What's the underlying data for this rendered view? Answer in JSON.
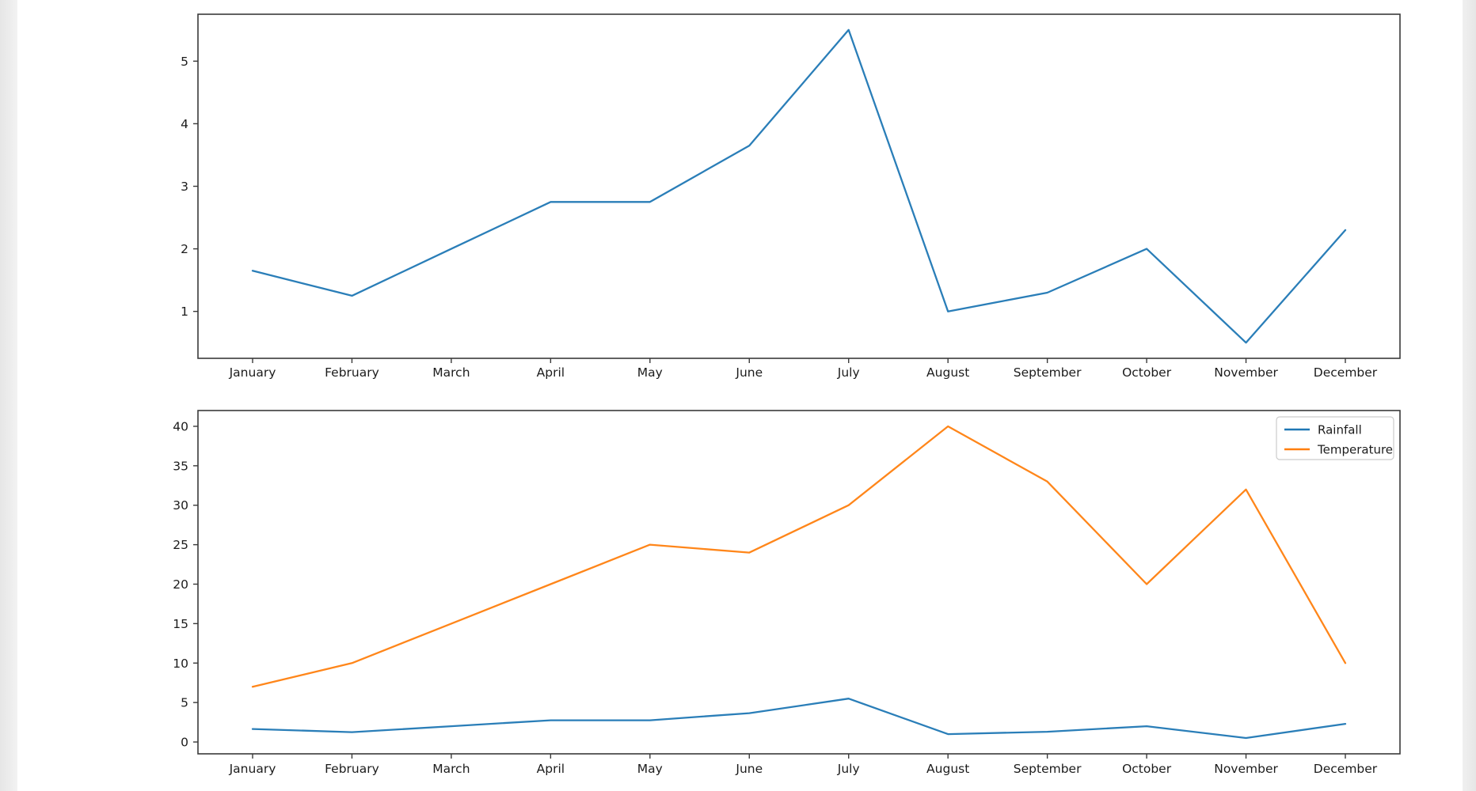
{
  "page": {
    "background": "#ffffff",
    "gutter_color": "#e6e6e6"
  },
  "colors": {
    "axis": "#3a3a3a",
    "tick_label": "#1c1c1c",
    "rainfall_line": "#1f77b4",
    "temperature_line": "#ff7f0e",
    "legend_border": "#cccccc",
    "legend_background": "#ffffff"
  },
  "chart_data": [
    {
      "type": "line",
      "title": "",
      "xlabel": "",
      "ylabel": "",
      "categories": [
        "January",
        "February",
        "March",
        "April",
        "May",
        "June",
        "July",
        "August",
        "September",
        "October",
        "November",
        "December"
      ],
      "series": [
        {
          "name": "Rainfall",
          "color": "#1f77b4",
          "values": [
            1.65,
            1.25,
            2.0,
            2.75,
            2.75,
            3.65,
            5.5,
            1.0,
            1.3,
            2.0,
            0.5,
            2.3
          ]
        }
      ],
      "ylim": [
        0.25,
        5.75
      ],
      "yticks": [
        1,
        2,
        3,
        4,
        5
      ],
      "grid": false,
      "legend": null
    },
    {
      "type": "line",
      "title": "",
      "xlabel": "",
      "ylabel": "",
      "categories": [
        "January",
        "February",
        "March",
        "April",
        "May",
        "June",
        "July",
        "August",
        "September",
        "October",
        "November",
        "December"
      ],
      "series": [
        {
          "name": "Rainfall",
          "color": "#1f77b4",
          "values": [
            1.65,
            1.25,
            2.0,
            2.75,
            2.75,
            3.65,
            5.5,
            1.0,
            1.3,
            2.0,
            0.5,
            2.3
          ]
        },
        {
          "name": "Temperature",
          "color": "#ff7f0e",
          "values": [
            7,
            10,
            15,
            20,
            25,
            24,
            30,
            40,
            33,
            20,
            32,
            10
          ]
        }
      ],
      "ylim": [
        -1.5,
        42
      ],
      "yticks": [
        0,
        5,
        10,
        15,
        20,
        25,
        30,
        35,
        40
      ],
      "grid": false,
      "legend": {
        "position": "top-right",
        "entries": [
          "Rainfall",
          "Temperature"
        ]
      }
    }
  ]
}
